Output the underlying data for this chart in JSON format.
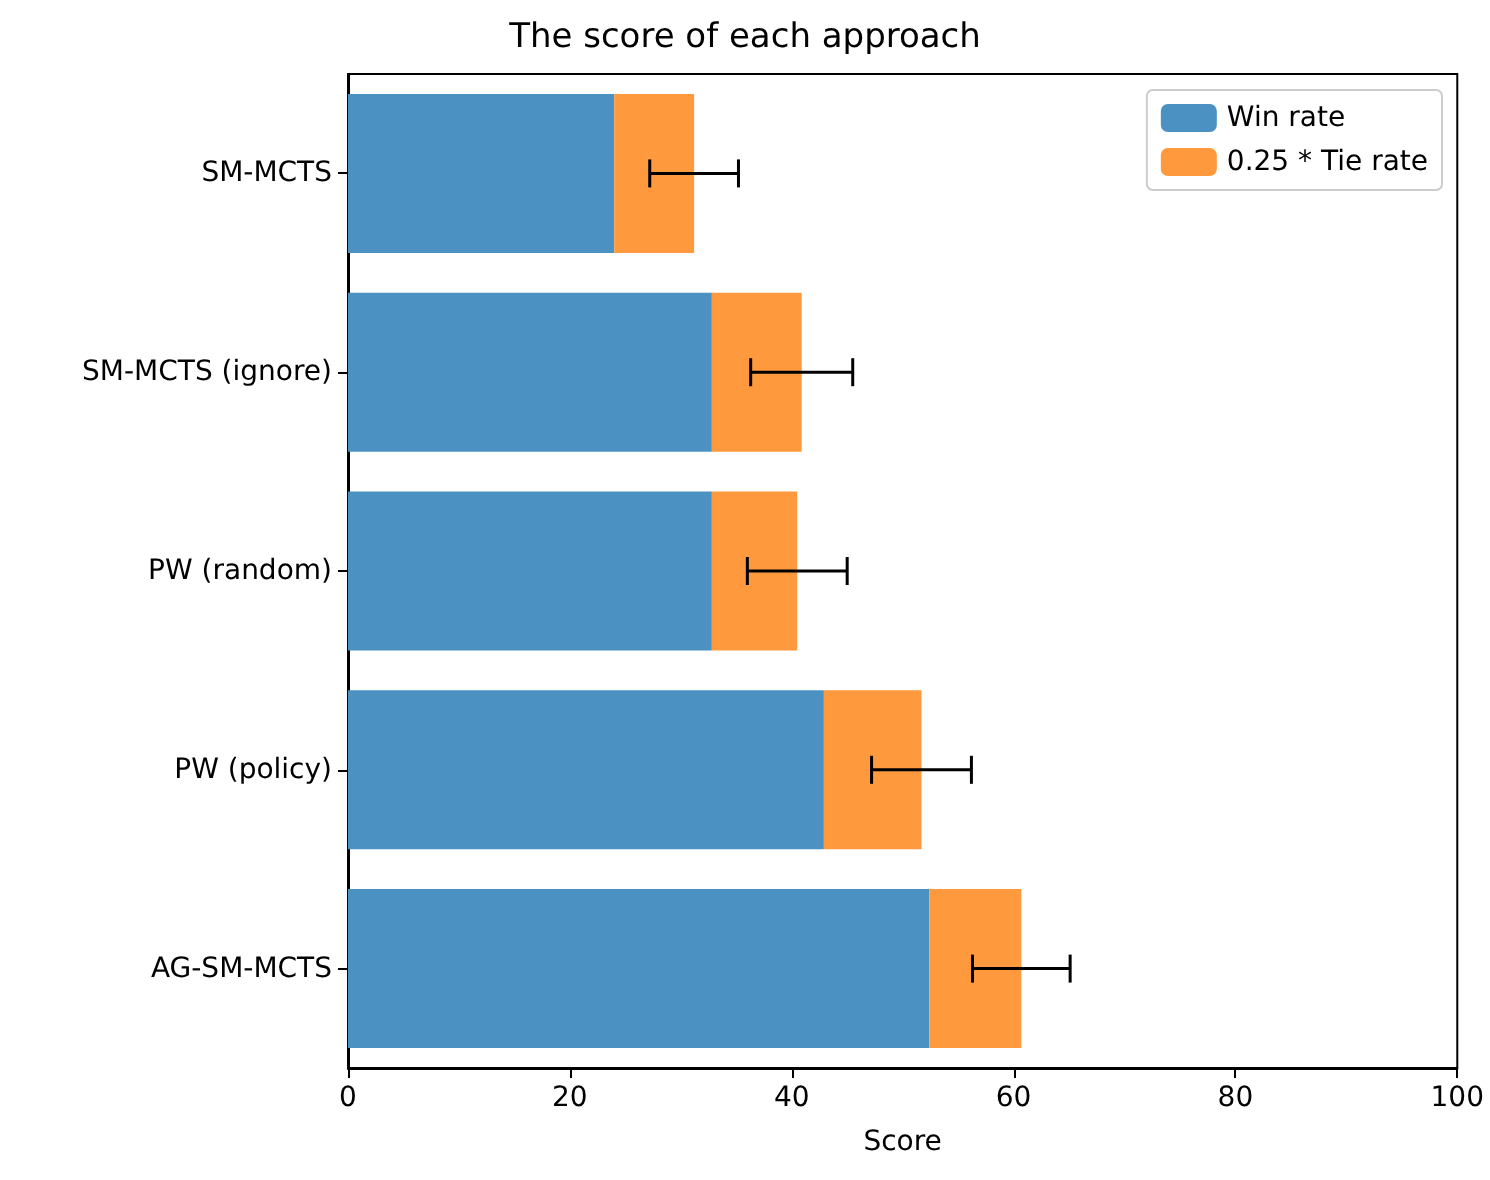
{
  "chart_data": {
    "type": "bar",
    "title": "The score of each approach",
    "xlabel": "Score",
    "orientation": "horizontal",
    "stacked": true,
    "categories": [
      "SM-MCTS",
      "SM-MCTS (ignore)",
      "PW (random)",
      "PW (policy)",
      "AG-SM-MCTS"
    ],
    "series": [
      {
        "name": "Win rate",
        "color": "#4b92c3",
        "values": [
          24.0,
          32.8,
          32.8,
          42.9,
          52.4
        ]
      },
      {
        "name": "0.25 * Tie rate",
        "color": "#ff993e",
        "values": [
          7.2,
          8.1,
          7.7,
          8.8,
          8.3
        ],
        "errors": [
          4.0,
          4.6,
          4.5,
          4.5,
          4.4
        ]
      }
    ],
    "xlim": [
      0,
      100
    ],
    "xticks": [
      0,
      20,
      40,
      60,
      80,
      100
    ],
    "grid": false,
    "legend": "top right"
  }
}
